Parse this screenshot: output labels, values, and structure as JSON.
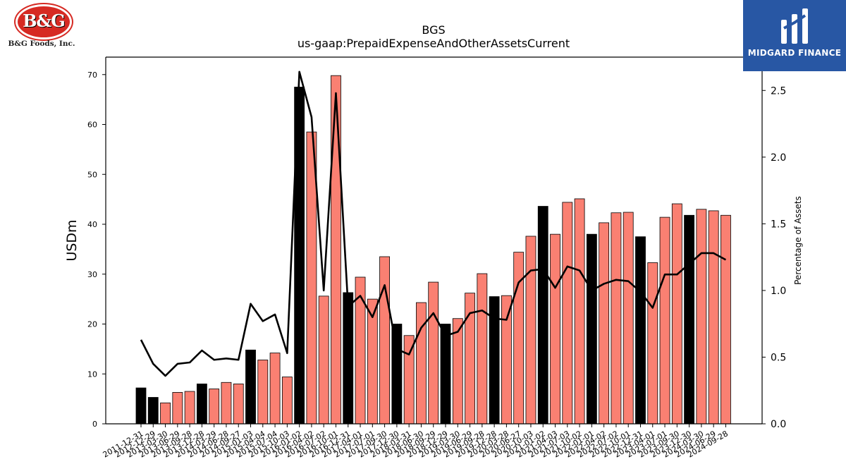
{
  "logos": {
    "left_badge": "B&G",
    "left_company": "B&G Foods, Inc.",
    "right_brand": "MIDGARD FINANCE"
  },
  "colors": {
    "bar_dark": "#000000",
    "bar_light": "#fa8072",
    "line": "#000000",
    "brand_blue": "#2857a4"
  },
  "chart_data": {
    "type": "bar",
    "title": "BGS",
    "subtitle": "us-gaap:PrepaidExpenseAndOtherAssetsCurrent",
    "ylabel": "USDm",
    "y2label": "Percentage of Assets",
    "ylim": [
      0,
      73.5
    ],
    "y2lim": [
      0,
      2.75
    ],
    "yticks": [
      0,
      10,
      20,
      30,
      40,
      50,
      60,
      70
    ],
    "y2ticks": [
      "0.0",
      "0.5",
      "1.0",
      "1.5",
      "2.0",
      "2.5"
    ],
    "grid": false,
    "categories": [
      "2011-12-31",
      "2012-12-29",
      "2013-03-30",
      "2013-06-29",
      "2013-09-28",
      "2013-12-28",
      "2014-03-29",
      "2014-06-28",
      "2014-09-27",
      "2015-01-03",
      "2015-04-04",
      "2015-07-04",
      "2015-10-03",
      "2016-01-02",
      "2016-04-02",
      "2016-07-02",
      "2016-10-01",
      "2016-12-31",
      "2017-04-01",
      "2017-07-01",
      "2017-09-30",
      "2017-12-30",
      "2018-03-31",
      "2018-06-30",
      "2018-09-29",
      "2018-12-29",
      "2019-03-30",
      "2019-06-29",
      "2019-09-28",
      "2019-12-28",
      "2020-03-28",
      "2020-06-27",
      "2020-10-03",
      "2021-01-02",
      "2021-04-03",
      "2021-07-03",
      "2021-10-02",
      "2022-01-01",
      "2022-04-02",
      "2022-07-02",
      "2022-10-01",
      "2022-12-31",
      "2023-04-01",
      "2023-07-01",
      "2023-09-30",
      "2023-12-30",
      "2024-03-30",
      "2024-06-29",
      "2024-09-28"
    ],
    "series": [
      {
        "kind": "bar",
        "values": [
          7.2,
          5.3,
          4.2,
          6.3,
          6.5,
          8.0,
          7.0,
          8.3,
          8.0,
          14.8,
          12.8,
          14.2,
          9.4,
          67.5,
          58.5,
          25.6,
          69.8,
          26.3,
          29.4,
          25.0,
          33.5,
          20.0,
          17.7,
          24.3,
          28.4,
          20.0,
          21.1,
          26.2,
          30.1,
          25.5,
          25.7,
          34.4,
          37.6,
          43.6,
          38.0,
          44.4,
          45.1,
          38.0,
          40.3,
          42.3,
          42.4,
          37.5,
          32.3,
          41.4,
          44.1,
          41.8,
          43.0,
          42.7,
          41.8
        ],
        "annual": [
          true,
          true,
          false,
          false,
          false,
          true,
          false,
          false,
          false,
          true,
          false,
          false,
          false,
          true,
          false,
          false,
          false,
          true,
          false,
          false,
          false,
          true,
          false,
          false,
          false,
          true,
          false,
          false,
          false,
          true,
          false,
          false,
          false,
          true,
          false,
          false,
          false,
          true,
          false,
          false,
          false,
          true,
          false,
          false,
          false,
          true,
          false,
          false,
          false
        ]
      },
      {
        "kind": "line",
        "axis": "right",
        "values": [
          0.63,
          0.45,
          0.36,
          0.45,
          0.46,
          0.55,
          0.48,
          0.49,
          0.48,
          0.9,
          0.77,
          0.82,
          0.53,
          2.64,
          2.3,
          1.0,
          2.48,
          0.88,
          0.96,
          0.8,
          1.04,
          0.56,
          0.52,
          0.72,
          0.83,
          0.66,
          0.69,
          0.83,
          0.85,
          0.79,
          0.78,
          1.06,
          1.15,
          1.16,
          1.02,
          1.18,
          1.15,
          1.0,
          1.05,
          1.08,
          1.07,
          0.99,
          0.87,
          1.12,
          1.12,
          1.2,
          1.28,
          1.28,
          1.23
        ]
      }
    ]
  }
}
